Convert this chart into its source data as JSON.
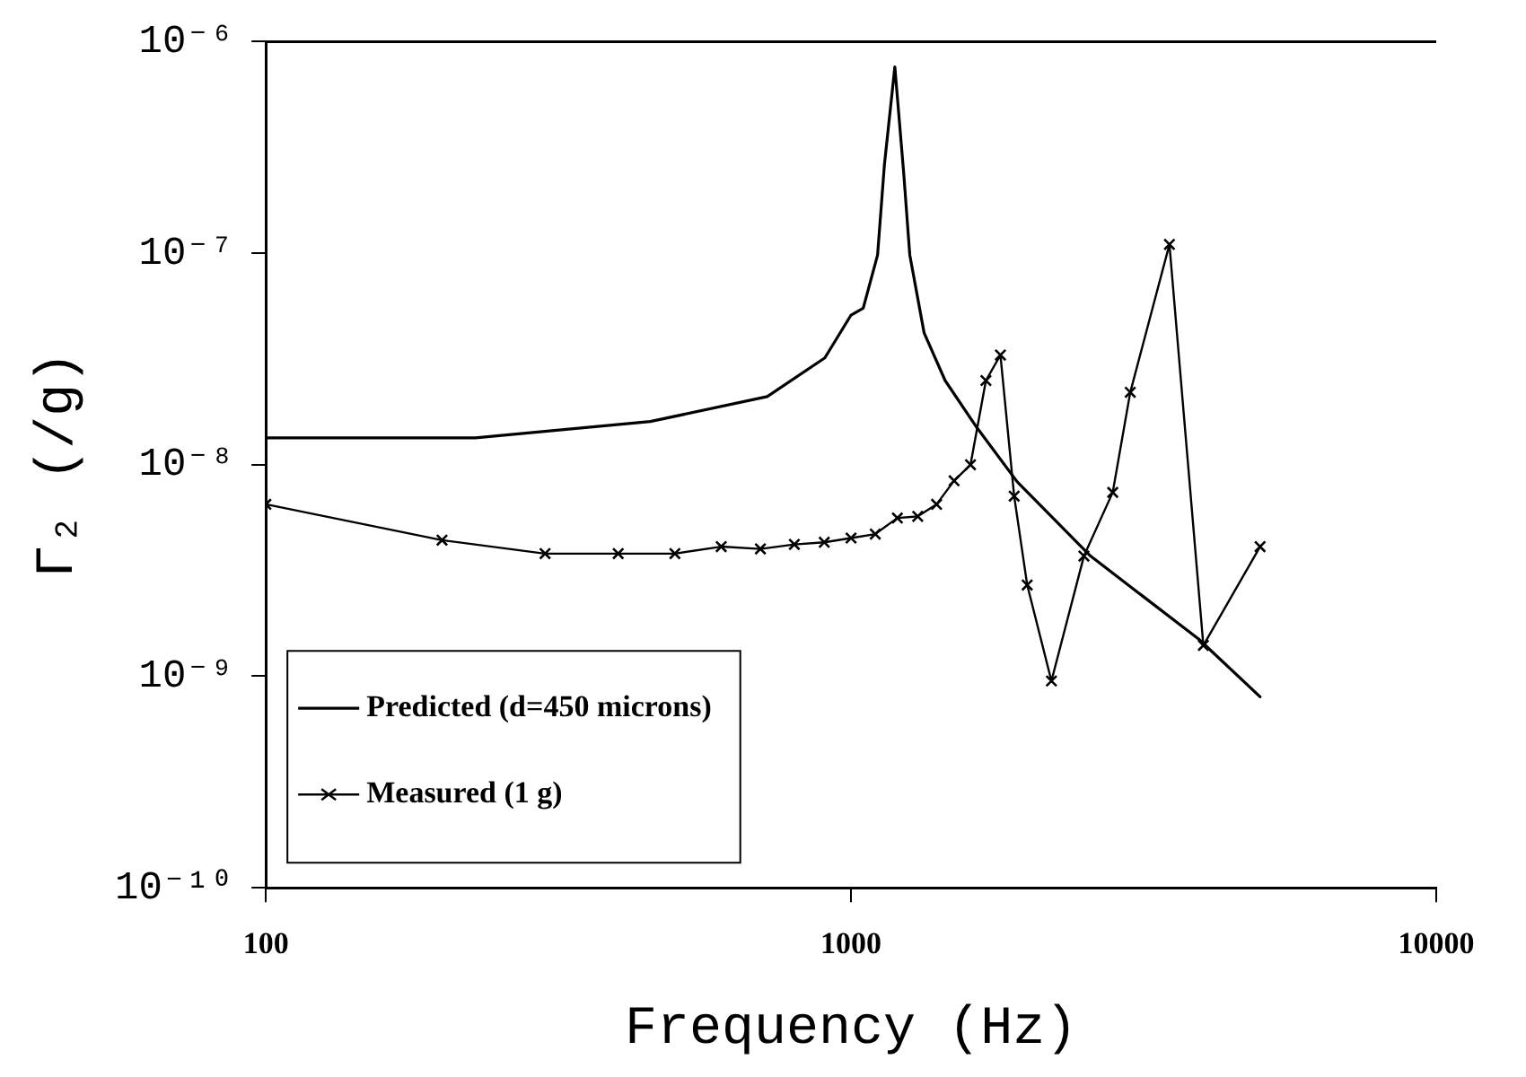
{
  "chart_data": {
    "type": "line",
    "xlabel": "Frequency (Hz)",
    "ylabel": "Γ₂ (/g)",
    "log": "xy",
    "xlim": [
      100,
      10000
    ],
    "xticks": [
      100,
      1000,
      10000
    ],
    "ylim": [
      1e-10,
      1e-06
    ],
    "yticks": [
      {
        "value": 1e-10,
        "label": "10⁻¹⁰"
      },
      {
        "value": 1e-09,
        "label": "10⁻⁹"
      },
      {
        "value": 1e-08,
        "label": "10⁻⁸"
      },
      {
        "value": 1e-07,
        "label": "10⁻⁷"
      },
      {
        "value": 1e-06,
        "label": "10⁻⁶"
      }
    ],
    "grid": false,
    "legend": "bottom left",
    "series": [
      {
        "name": "Predicted (d=450 microns)",
        "color": "#000000",
        "marker": "none",
        "x": [
          100,
          228,
          454,
          719,
          902,
          1000,
          1049,
          1110,
          1140,
          1188,
          1230,
          1260,
          1333,
          1448,
          1640,
          1923,
          2566,
          3926,
          5000
        ],
        "values": [
          1.34e-08,
          1.34e-08,
          1.6e-08,
          2.1e-08,
          3.2e-08,
          5.1e-08,
          5.5e-08,
          9.8e-08,
          2.6e-07,
          7.6e-07,
          2.4e-07,
          9.8e-08,
          4.2e-08,
          2.5e-08,
          1.5e-08,
          8.3e-09,
          3.7e-09,
          1.5e-09,
          8e-10
        ]
      },
      {
        "name": "Measured (1 g)",
        "color": "#000000",
        "marker": "cross",
        "x": [
          100,
          200,
          300,
          400,
          500,
          600,
          700,
          800,
          900,
          1000,
          1100,
          1200,
          1300,
          1400,
          1500,
          1600,
          1700,
          1800,
          1900,
          2000,
          2200,
          2500,
          2800,
          3000,
          3500,
          4000,
          5000
        ],
        "values": [
          6.5e-09,
          4.4e-09,
          3.8e-09,
          3.8e-09,
          3.8e-09,
          4.1e-09,
          4e-09,
          4.2e-09,
          4.3e-09,
          4.5e-09,
          4.7e-09,
          5.6e-09,
          5.7e-09,
          6.5e-09,
          8.4e-09,
          1e-08,
          2.5e-08,
          3.3e-08,
          7.1e-09,
          2.7e-09,
          9.5e-10,
          3.7e-09,
          7.4e-09,
          2.2e-08,
          1.1e-07,
          1.4e-09,
          4.1e-09
        ]
      }
    ]
  }
}
